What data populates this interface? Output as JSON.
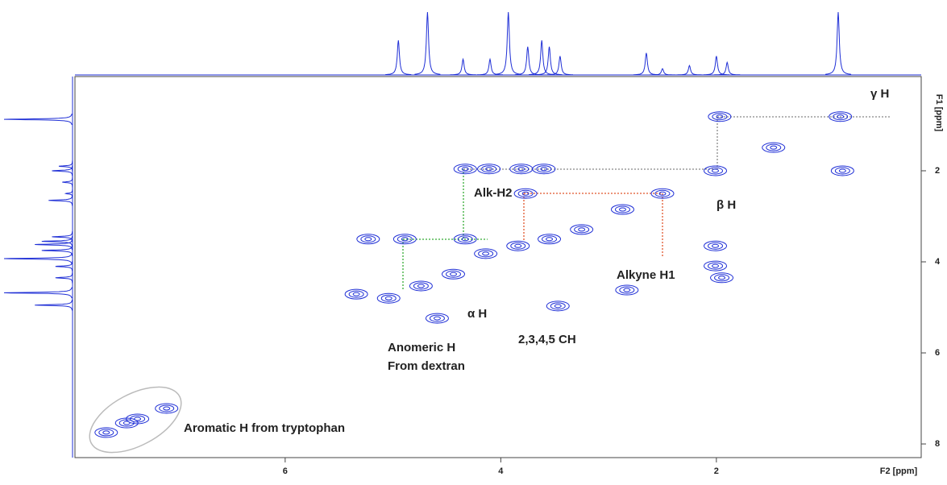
{
  "chart_data": {
    "type": "nmr2d",
    "x_label": "F2 [ppm]",
    "y_label": "F1 [ppm]",
    "xlim": [
      7.95,
      0.1
    ],
    "ylim": [
      -0.07,
      8.3
    ],
    "xticks": [
      2,
      4,
      6
    ],
    "yticks": [
      2,
      4,
      6,
      8
    ],
    "color": "#1f2fd6",
    "projection": {
      "x": [
        4.95,
        4.68,
        4.35,
        4.1,
        3.93,
        3.75,
        3.62,
        3.55,
        3.45,
        2.65,
        2.5,
        2.25,
        2.0,
        1.9,
        0.87
      ],
      "values": [
        0.55,
        1.0,
        0.25,
        0.25,
        1.0,
        0.45,
        0.55,
        0.45,
        0.3,
        0.35,
        0.1,
        0.15,
        0.3,
        0.2,
        1.0
      ]
    },
    "peaks": {
      "x": [
        0.85,
        1.97,
        0.83,
        2.01,
        1.47,
        4.33,
        4.11,
        3.81,
        3.6,
        3.77,
        2.5,
        2.87,
        3.25,
        3.55,
        3.84,
        4.14,
        4.44,
        4.74,
        5.04,
        4.89,
        4.33,
        2.01,
        2.01,
        1.95,
        5.23,
        5.34,
        4.59,
        3.47,
        2.83,
        7.66,
        7.47,
        7.37,
        7.1
      ],
      "values": [
        0.81,
        0.81,
        2.0,
        2.0,
        1.49,
        1.96,
        1.96,
        1.96,
        1.96,
        2.5,
        2.5,
        2.85,
        3.29,
        3.5,
        3.65,
        3.82,
        4.27,
        4.53,
        4.8,
        3.5,
        3.5,
        3.65,
        4.09,
        4.35,
        3.5,
        4.71,
        5.24,
        4.97,
        4.62,
        7.75,
        7.54,
        7.45,
        7.22
      ]
    },
    "annotations": [
      "γ H",
      "β H",
      "Alk-H2",
      "Alkyne H1",
      "α H",
      "2,3,4,5 CH",
      "Anomeric H",
      "From dextran",
      "Aromatic H from tryptophan"
    ]
  }
}
